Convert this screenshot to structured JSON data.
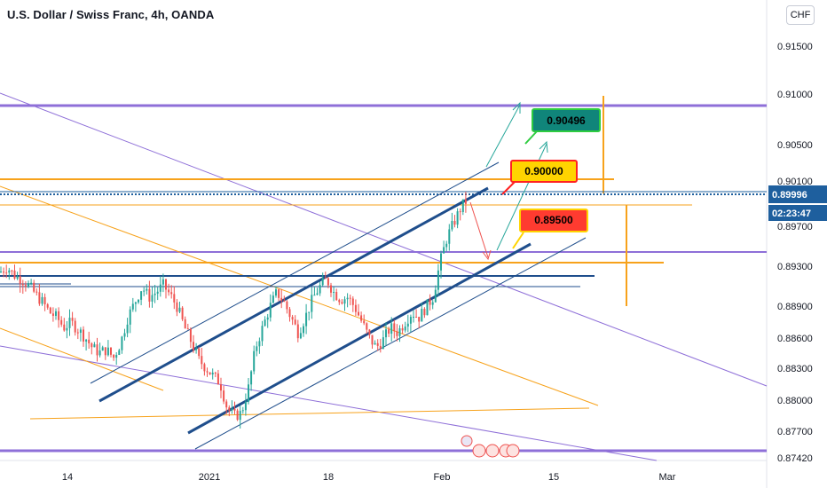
{
  "header": {
    "title": "U.S. Dollar / Swiss Franc, 4h, OANDA",
    "currency_button": "CHF"
  },
  "price_axis": {
    "current_price": "0.89996",
    "countdown": "02:23:47",
    "current_price_color": "#1e5f9e"
  },
  "callouts": [
    {
      "text": "0.90496",
      "bg": "#10857a",
      "fg": "#000000",
      "border": "#2ecc40"
    },
    {
      "text": "0.90000",
      "bg": "#ffd400",
      "fg": "#000000",
      "border": "#ff2222"
    },
    {
      "text": "0.89500",
      "bg": "#ff3b30",
      "fg": "#000000",
      "border": "#ffd400"
    }
  ],
  "colors": {
    "up": "#26a69a",
    "down": "#ef5350",
    "orange": "#f7a21b",
    "purple": "#8e6fd8",
    "navy": "#1f4e8c"
  },
  "chart_data": {
    "type": "candlestick",
    "title": "U.S. Dollar / Swiss Franc, 4h, OANDA",
    "y_axis_ticks": [
      "0.91500",
      "0.91000",
      "0.90500",
      "0.90100",
      "0.89700",
      "0.89300",
      "0.88900",
      "0.88600",
      "0.88300",
      "0.88000",
      "0.87700",
      "0.87420"
    ],
    "x_axis_ticks": [
      "14",
      "2021",
      "18",
      "Feb",
      "15",
      "Mar"
    ],
    "ylim": [
      0.8738,
      0.9195
    ],
    "current_price": 0.89996,
    "close_path": [
      [
        0,
        0.8925
      ],
      [
        8,
        0.893
      ],
      [
        16,
        0.8922
      ],
      [
        24,
        0.8918
      ],
      [
        32,
        0.8912
      ],
      [
        40,
        0.8903
      ],
      [
        48,
        0.8895
      ],
      [
        56,
        0.8885
      ],
      [
        64,
        0.888
      ],
      [
        72,
        0.887
      ],
      [
        80,
        0.8875
      ],
      [
        88,
        0.8868
      ],
      [
        96,
        0.886
      ],
      [
        104,
        0.885
      ],
      [
        112,
        0.8845
      ],
      [
        120,
        0.8848
      ],
      [
        128,
        0.884
      ],
      [
        136,
        0.8855
      ],
      [
        144,
        0.888
      ],
      [
        152,
        0.8895
      ],
      [
        160,
        0.891
      ],
      [
        168,
        0.89
      ],
      [
        176,
        0.8905
      ],
      [
        184,
        0.8912
      ],
      [
        192,
        0.8902
      ],
      [
        200,
        0.889
      ],
      [
        208,
        0.887
      ],
      [
        216,
        0.8855
      ],
      [
        224,
        0.8838
      ],
      [
        232,
        0.883
      ],
      [
        240,
        0.8822
      ],
      [
        248,
        0.8815
      ],
      [
        256,
        0.879
      ],
      [
        264,
        0.8782
      ],
      [
        272,
        0.8785
      ],
      [
        280,
        0.881
      ],
      [
        288,
        0.885
      ],
      [
        296,
        0.887
      ],
      [
        304,
        0.889
      ],
      [
        312,
        0.8905
      ],
      [
        320,
        0.8895
      ],
      [
        328,
        0.888
      ],
      [
        336,
        0.8865
      ],
      [
        344,
        0.888
      ],
      [
        352,
        0.8898
      ],
      [
        360,
        0.891
      ],
      [
        368,
        0.8918
      ],
      [
        376,
        0.8905
      ],
      [
        384,
        0.8898
      ],
      [
        392,
        0.89
      ],
      [
        400,
        0.889
      ],
      [
        408,
        0.8875
      ],
      [
        416,
        0.886
      ],
      [
        424,
        0.885
      ],
      [
        432,
        0.8858
      ],
      [
        440,
        0.887
      ],
      [
        448,
        0.8865
      ],
      [
        456,
        0.8875
      ],
      [
        464,
        0.8885
      ],
      [
        472,
        0.888
      ],
      [
        480,
        0.889
      ],
      [
        488,
        0.89
      ],
      [
        496,
        0.8935
      ],
      [
        504,
        0.896
      ],
      [
        512,
        0.8975
      ],
      [
        520,
        0.899
      ],
      [
        528,
        0.8998
      ]
    ]
  }
}
